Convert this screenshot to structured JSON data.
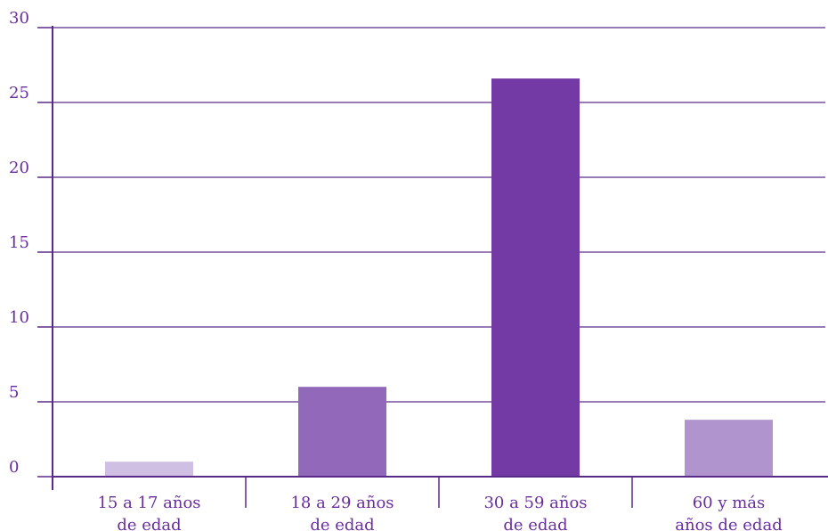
{
  "chart_data": {
    "type": "bar",
    "categories": [
      [
        "15 a 17 años",
        "de edad"
      ],
      [
        "18 a 29 años",
        "de edad"
      ],
      [
        "30 a 59 años",
        "de edad"
      ],
      [
        "60 y más",
        "años de edad"
      ]
    ],
    "values": [
      1,
      6,
      26.6,
      3.8
    ],
    "bar_colors": [
      "#cfc0e3",
      "#9268bb",
      "#733aa5",
      "#b094ce"
    ],
    "axis_color": "#5a2a88",
    "grid_color": "#5a2a88",
    "label_color": "#6a2d9c",
    "yticks": [
      "0",
      "5",
      "10",
      "15",
      "20",
      "25",
      "30"
    ],
    "ylim": [
      0,
      30
    ],
    "grid": true,
    "title": "",
    "xlabel": "",
    "ylabel": ""
  }
}
